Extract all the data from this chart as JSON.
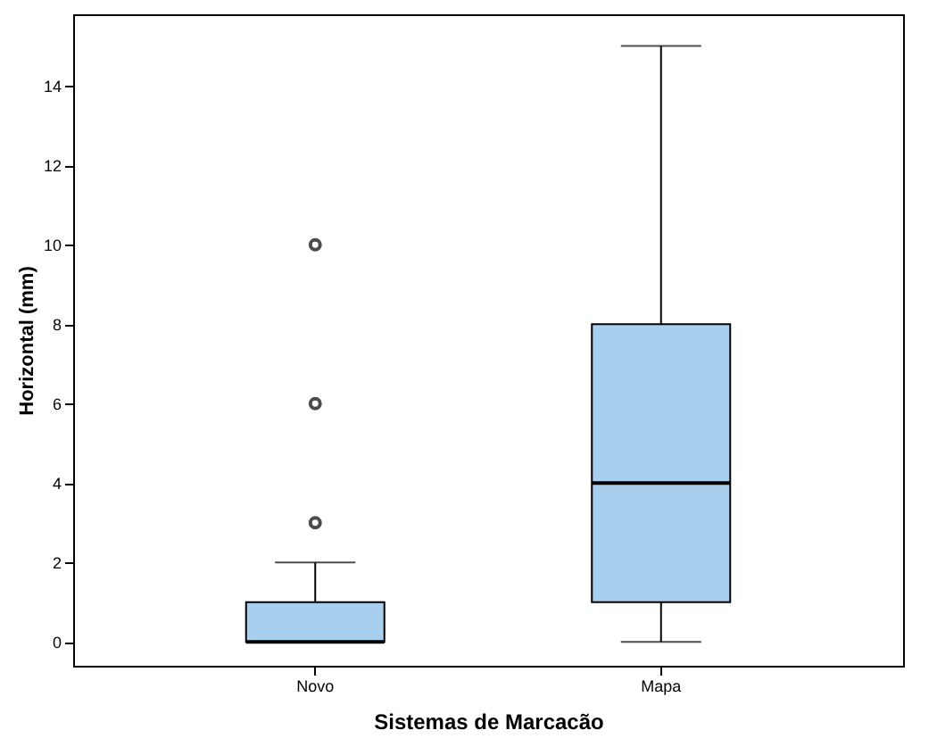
{
  "chart_data": {
    "type": "box",
    "xlabel": "Sistemas de Marcacão",
    "ylabel": "Horizontal (mm)",
    "categories": [
      "Novo",
      "Mapa"
    ],
    "boxes": [
      {
        "low": 0,
        "q1": 0,
        "median": 0,
        "q3": 1,
        "high": 2,
        "outliers": [
          3,
          6,
          10
        ]
      },
      {
        "low": 0,
        "q1": 1,
        "median": 4,
        "q3": 8,
        "high": 15
      }
    ],
    "color": "#a9cfee",
    "ylim": [
      -0.6,
      15.8
    ],
    "yticks": [
      0,
      2,
      4,
      6,
      8,
      10,
      12,
      14
    ],
    "grid": false
  }
}
